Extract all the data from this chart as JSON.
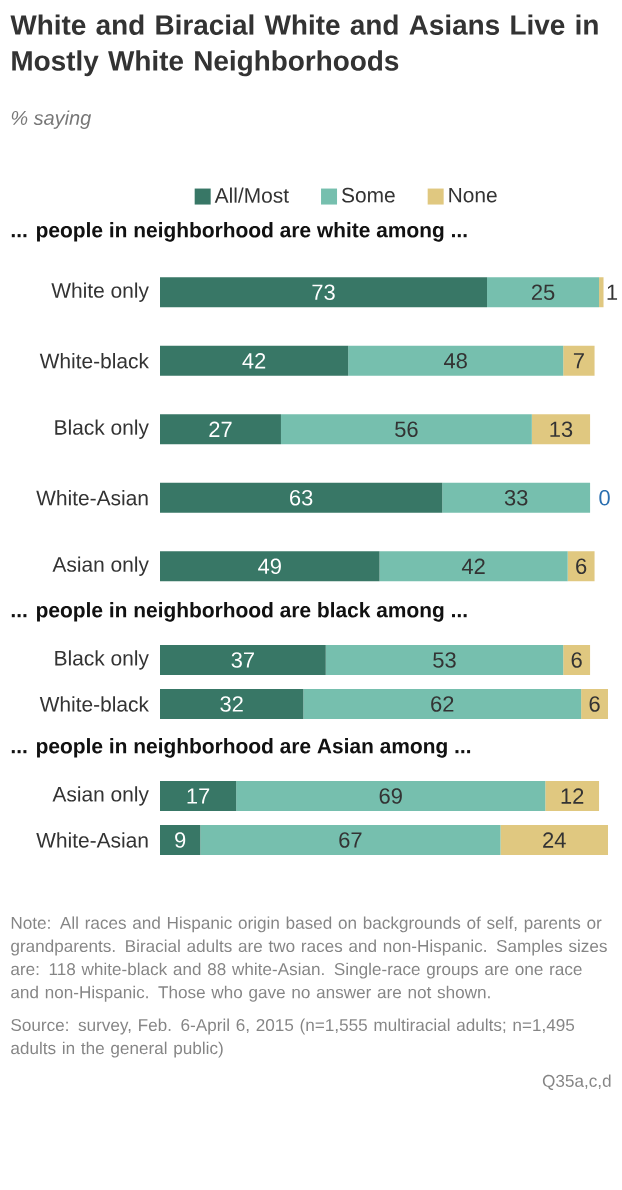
{
  "chart_data": [
    {
      "type": "other",
      "title": "White and Biracial White and Asians Live in Mostly White Neighborhoods",
      "subtitle": "*% saying*"
    },
    {
      "type": "bar",
      "orientation": "horizontal",
      "stacked": true,
      "data_labels": true,
      "legend": "top",
      "title": "**... people  in neighborhood are white among ...**",
      "categories": [
        "White only",
        "White-black",
        "Black only",
        "White-Asian",
        "Asian only"
      ],
      "series": [
        {
          "name": "All/Most",
          "color": "#387766",
          "values": [
            73,
            42,
            27,
            63,
            49
          ]
        },
        {
          "name": "Some",
          "color": "#76bfae",
          "values": [
            25,
            48,
            56,
            33,
            42
          ]
        },
        {
          "name": "None",
          "color": "#e0c880",
          "values": [
            1,
            7,
            13,
            0,
            6
          ]
        }
      ]
    },
    {
      "type": "bar",
      "orientation": "horizontal",
      "stacked": true,
      "data_labels": true,
      "title": "**... people  in neighborhood are black among ...**",
      "categories": [
        "Black only",
        "White-black"
      ],
      "series": [
        {
          "color": "#387766",
          "values": [
            37,
            32
          ]
        },
        {
          "color": "#76bfae",
          "values": [
            53,
            62
          ]
        },
        {
          "color": "#e0c880",
          "values": [
            6,
            6
          ]
        }
      ]
    },
    {
      "type": "bar",
      "orientation": "horizontal",
      "stacked": true,
      "data_labels": true,
      "title": "**... people  in neighborhood are Asian among ...**",
      "categories": [
        "Asian only",
        "White-Asian"
      ],
      "series": [
        {
          "color": "#387766",
          "values": [
            17,
            9
          ]
        },
        {
          "color": "#76bfae",
          "values": [
            69,
            67
          ]
        },
        {
          "color": "#e0c880",
          "values": [
            12,
            24
          ]
        }
      ],
      "annotations": [
        "Note: All races and Hispanic origin based on backgrounds of self, parents or grandparents. Biracial adults are two races and non-Hispanic. Samples sizes are: 118 white-black and 88 white-Asian. Single-race groups are one race and non-Hispanic. Those who gave no answer are not shown.",
        "Source: survey, Feb. 6-April 6, 2015 (n=1,555 multiracial adults; n=1,495 adults in the general public)",
        "Q35a,c,d"
      ]
    }
  ]
}
